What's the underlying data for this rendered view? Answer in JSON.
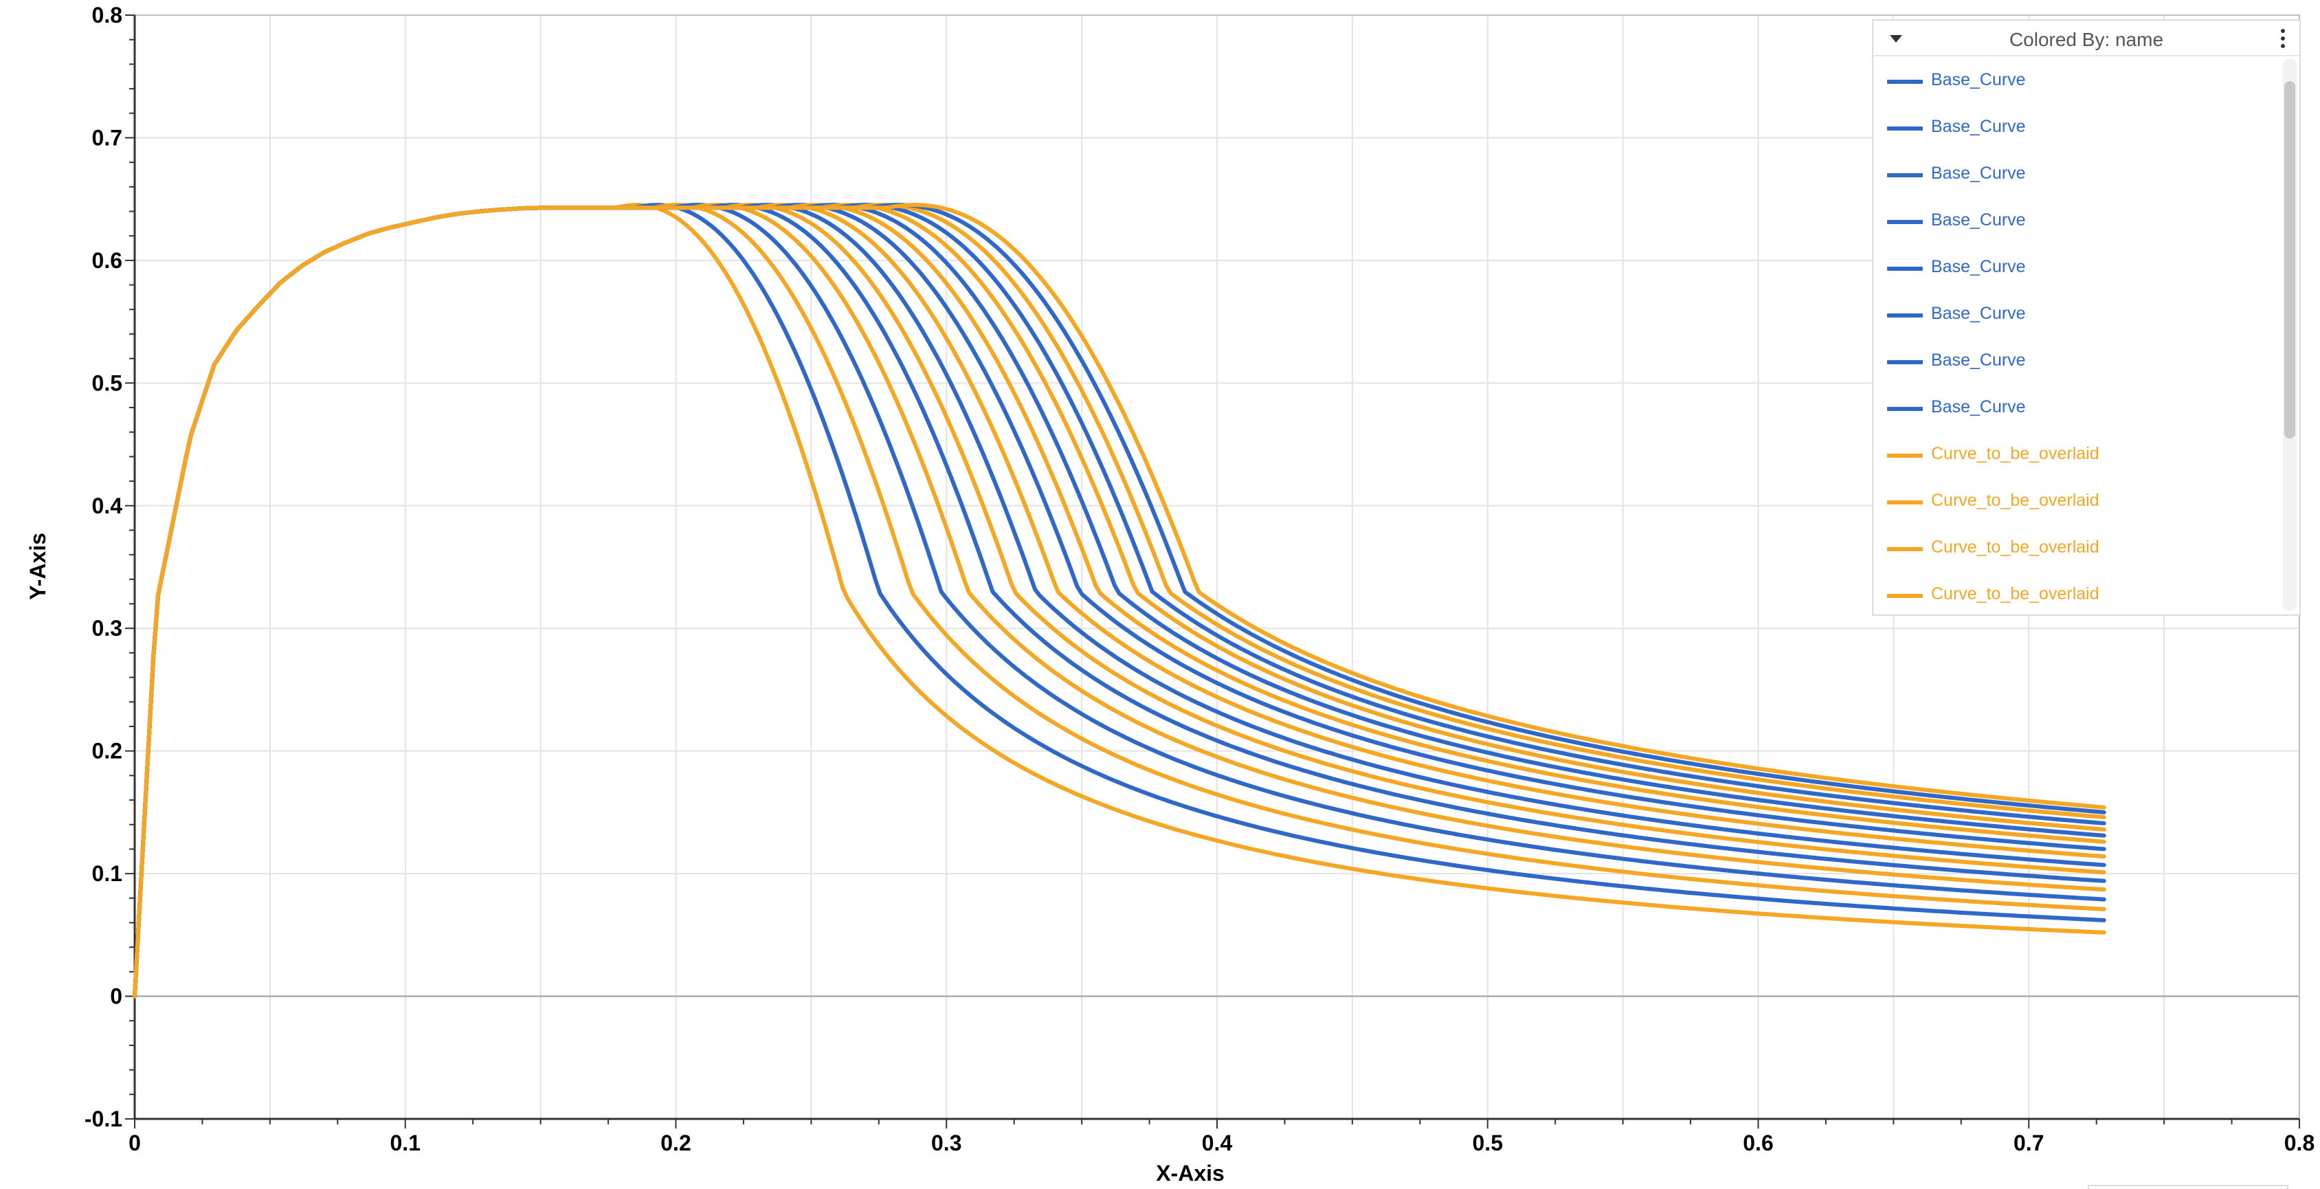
{
  "chart_data": {
    "type": "line",
    "xlabel": "X-Axis",
    "ylabel": "Y-Axis",
    "xlim": [
      0,
      0.8
    ],
    "ylim": [
      -0.1,
      0.8
    ],
    "x_ticks": [
      "0",
      "0.1",
      "0.2",
      "0.3",
      "0.4",
      "0.5",
      "0.6",
      "0.7",
      "0.8"
    ],
    "y_ticks": [
      "-0.1",
      "0",
      "0.1",
      "0.2",
      "0.3",
      "0.4",
      "0.5",
      "0.6",
      "0.7",
      "0.8"
    ],
    "grid": true,
    "legend_position": "top-right",
    "x": [
      0,
      0.008,
      0.0204,
      0.0294,
      0.0376,
      0.0457,
      0.0539,
      0.0621,
      0.0703,
      0.0785,
      0.0866,
      0.0948,
      0.103,
      0.1112,
      0.1193,
      0.1275,
      0.1357,
      0.1438,
      0.152,
      0.1602,
      0.1684,
      0.1765,
      0.1847,
      0.1929,
      0.2011,
      0.2092,
      0.2174,
      0.2256,
      0.2338,
      0.2419,
      0.2501,
      0.2583,
      0.2665,
      0.2746,
      0.2828,
      0.291,
      0.2992,
      0.3073,
      0.3155,
      0.3237,
      0.3319,
      0.34,
      0.3482,
      0.3564,
      0.3645,
      0.3727,
      0.3809,
      0.3891,
      0.3972,
      0.4054,
      0.4136,
      0.4218,
      0.4299,
      0.4381,
      0.4463,
      0.4545,
      0.4626,
      0.4708,
      0.479,
      0.4872,
      0.4953,
      0.5035,
      0.5117,
      0.5199,
      0.528,
      0.5362,
      0.5444,
      0.5526,
      0.5607,
      0.5689,
      0.5771,
      0.5853,
      0.5934,
      0.6016,
      0.6098,
      0.6179,
      0.6261,
      0.6343,
      0.6425,
      0.6506,
      0.6588,
      0.667,
      0.6752,
      0.6833,
      0.6915,
      0.6997,
      0.7079,
      0.716,
      0.7242,
      0.7278
    ],
    "series_params": {
      "peak_y": 0.643,
      "rise_points": [
        [
          0,
          0
        ],
        [
          0.008,
          0.32
        ],
        [
          0.0204,
          0.455
        ],
        [
          0.0294,
          0.515
        ],
        [
          0.0376,
          0.543
        ],
        [
          0.0457,
          0.563
        ],
        [
          0.0539,
          0.582
        ],
        [
          0.0621,
          0.596
        ],
        [
          0.0703,
          0.607
        ],
        [
          0.0785,
          0.615
        ],
        [
          0.0866,
          0.622
        ],
        [
          0.0948,
          0.627
        ],
        [
          0.103,
          0.631
        ],
        [
          0.1112,
          0.635
        ],
        [
          0.1193,
          0.638
        ],
        [
          0.1275,
          0.64
        ],
        [
          0.1357,
          0.6415
        ],
        [
          0.1438,
          0.6425
        ],
        [
          0.152,
          0.643
        ],
        [
          0.16,
          0.643
        ],
        [
          0.175,
          0.643
        ]
      ]
    },
    "series": [
      {
        "name": "Curve_to_be_overlaid",
        "color": "#F5A623",
        "x_onset": 0.178,
        "x_mid": 0.262,
        "tail_y": 0.052
      },
      {
        "name": "Base_Curve",
        "color": "#3068C8",
        "x_onset": 0.185,
        "x_mid": 0.275,
        "tail_y": 0.062
      },
      {
        "name": "Curve_to_be_overlaid",
        "color": "#F5A623",
        "x_onset": 0.192,
        "x_mid": 0.287,
        "tail_y": 0.071
      },
      {
        "name": "Base_Curve",
        "color": "#3068C8",
        "x_onset": 0.199,
        "x_mid": 0.298,
        "tail_y": 0.079
      },
      {
        "name": "Curve_to_be_overlaid",
        "color": "#F5A623",
        "x_onset": 0.206,
        "x_mid": 0.308,
        "tail_y": 0.087
      },
      {
        "name": "Base_Curve",
        "color": "#3068C8",
        "x_onset": 0.212,
        "x_mid": 0.317,
        "tail_y": 0.094
      },
      {
        "name": "Curve_to_be_overlaid",
        "color": "#F5A623",
        "x_onset": 0.218,
        "x_mid": 0.325,
        "tail_y": 0.101
      },
      {
        "name": "Base_Curve",
        "color": "#3068C8",
        "x_onset": 0.224,
        "x_mid": 0.333,
        "tail_y": 0.107
      },
      {
        "name": "Curve_to_be_overlaid",
        "color": "#F5A623",
        "x_onset": 0.23,
        "x_mid": 0.341,
        "tail_y": 0.114
      },
      {
        "name": "Base_Curve",
        "color": "#3068C8",
        "x_onset": 0.236,
        "x_mid": 0.349,
        "tail_y": 0.12
      },
      {
        "name": "Curve_to_be_overlaid",
        "color": "#F5A623",
        "x_onset": 0.242,
        "x_mid": 0.356,
        "tail_y": 0.126
      },
      {
        "name": "Base_Curve",
        "color": "#3068C8",
        "x_onset": 0.248,
        "x_mid": 0.363,
        "tail_y": 0.131
      },
      {
        "name": "Curve_to_be_overlaid",
        "color": "#F5A623",
        "x_onset": 0.254,
        "x_mid": 0.37,
        "tail_y": 0.136
      },
      {
        "name": "Base_Curve",
        "color": "#3068C8",
        "x_onset": 0.26,
        "x_mid": 0.376,
        "tail_y": 0.141
      },
      {
        "name": "Curve_to_be_overlaid",
        "color": "#F5A623",
        "x_onset": 0.266,
        "x_mid": 0.382,
        "tail_y": 0.146
      },
      {
        "name": "Base_Curve",
        "color": "#3068C8",
        "x_onset": 0.272,
        "x_mid": 0.388,
        "tail_y": 0.15
      },
      {
        "name": "Curve_to_be_overlaid",
        "color": "#F5A623",
        "x_onset": 0.278,
        "x_mid": 0.393,
        "tail_y": 0.154
      }
    ]
  },
  "legend": {
    "title": "Colored By: name",
    "items": [
      {
        "label": "Base_Curve",
        "color": "#3068C8"
      },
      {
        "label": "Base_Curve",
        "color": "#3068C8"
      },
      {
        "label": "Base_Curve",
        "color": "#3068C8"
      },
      {
        "label": "Base_Curve",
        "color": "#3068C8"
      },
      {
        "label": "Base_Curve",
        "color": "#3068C8"
      },
      {
        "label": "Base_Curve",
        "color": "#3068C8"
      },
      {
        "label": "Base_Curve",
        "color": "#3068C8"
      },
      {
        "label": "Base_Curve",
        "color": "#3068C8"
      },
      {
        "label": "Curve_to_be_overlaid",
        "color": "#F5A623"
      },
      {
        "label": "Curve_to_be_overlaid",
        "color": "#F5A623"
      },
      {
        "label": "Curve_to_be_overlaid",
        "color": "#F5A623"
      },
      {
        "label": "Curve_to_be_overlaid",
        "color": "#F5A623"
      }
    ],
    "collapse_icon": "caret-down-icon",
    "menu_icon": "kebab-menu-icon"
  },
  "colors": {
    "base": "#3068C8",
    "overlay": "#F5A623",
    "grid": "#e3e3e3",
    "axis": "#555555"
  }
}
